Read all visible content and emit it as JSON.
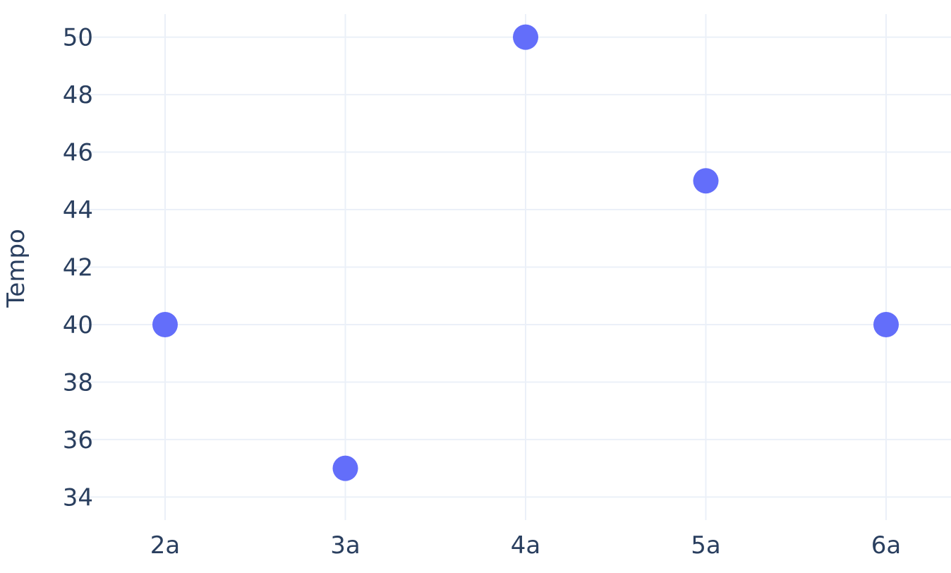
{
  "chart_data": {
    "type": "scatter",
    "title": "",
    "xlabel": "",
    "ylabel": "Tempo",
    "categories": [
      "2a",
      "3a",
      "4a",
      "5a",
      "6a"
    ],
    "values": [
      40,
      35,
      50,
      45,
      40
    ],
    "ylim": [
      33.2,
      50.8
    ],
    "y_ticks": [
      34,
      36,
      38,
      40,
      42,
      44,
      46,
      48,
      50
    ],
    "grid": true,
    "legend": "none",
    "colors": {
      "marker": "#636efa",
      "grid": "#ebf0f8",
      "text": "#2a3f5f",
      "background": "#ffffff"
    }
  }
}
